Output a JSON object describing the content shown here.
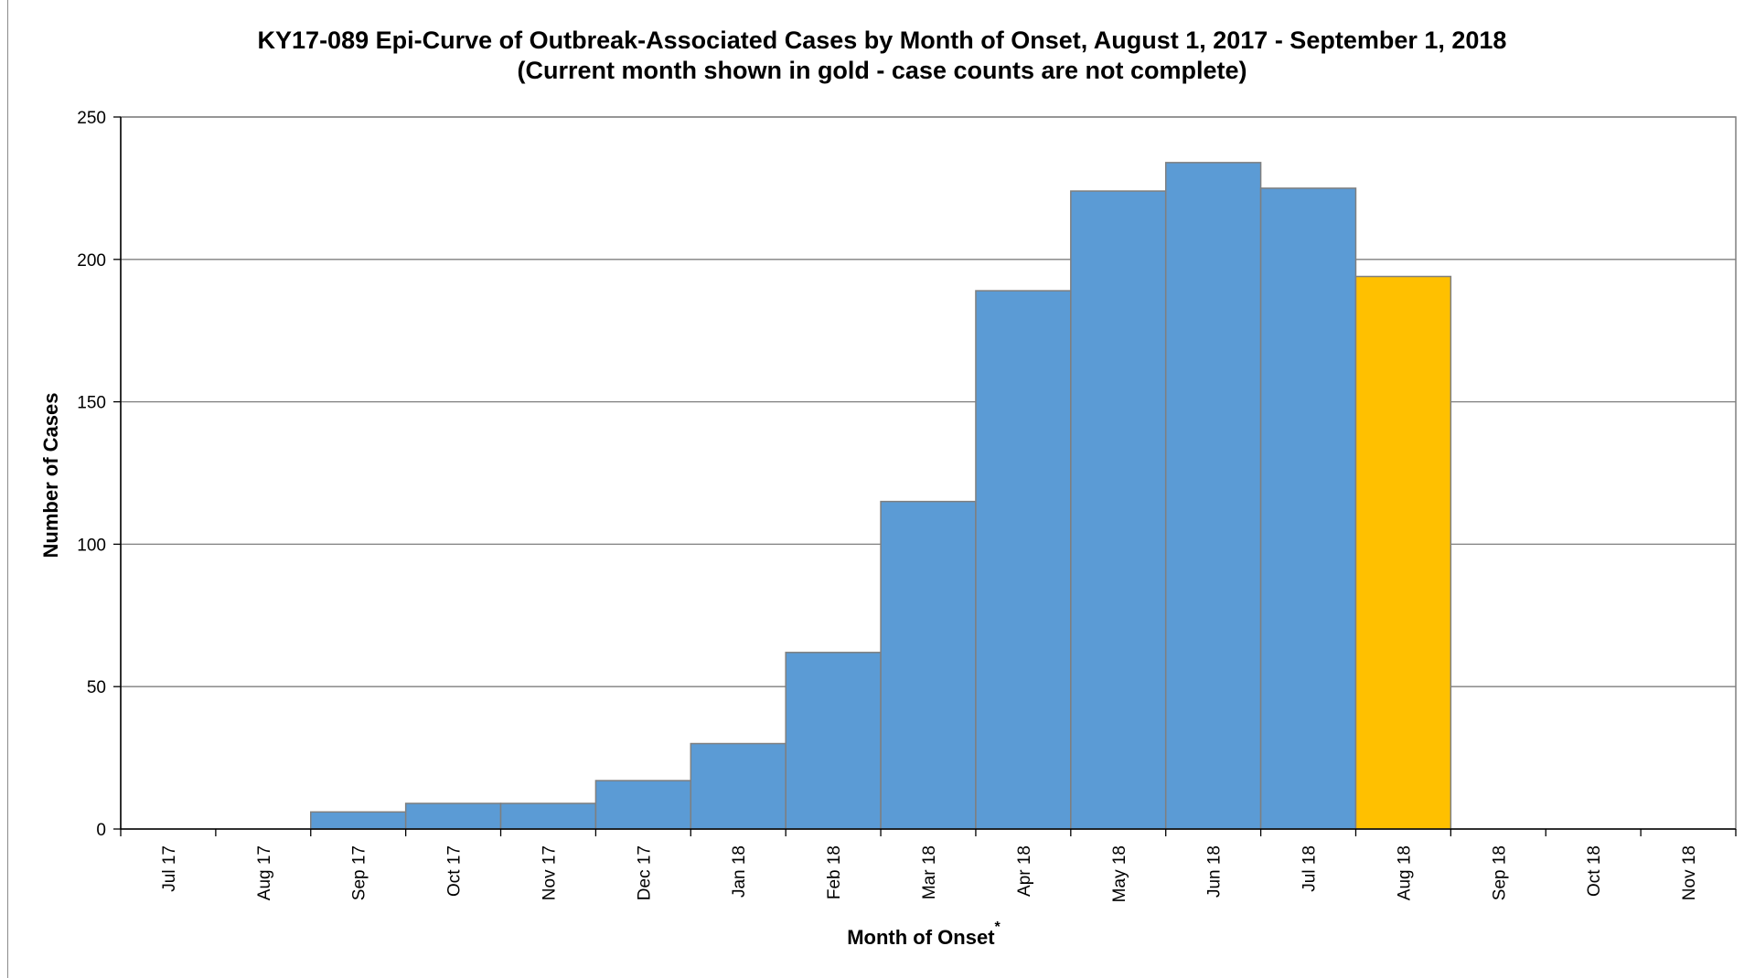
{
  "chart_data": {
    "type": "bar",
    "title_line1": "KY17-089 Epi-Curve of Outbreak-Associated Cases by Month of Onset, August 1, 2017 - September 1, 2018",
    "title_line2": "(Current month shown in gold - case counts are not complete)",
    "xlabel": "Month of Onset",
    "xlabel_marker": "*",
    "ylabel": "Number of Cases",
    "ylim": [
      0,
      250
    ],
    "yticks": [
      0,
      50,
      100,
      150,
      200,
      250
    ],
    "grid": true,
    "categories": [
      "Jul 17",
      "Aug 17",
      "Sep 17",
      "Oct 17",
      "Nov 17",
      "Dec 17",
      "Jan 18",
      "Feb 18",
      "Mar 18",
      "Apr 18",
      "May 18",
      "Jun 18",
      "Jul 18",
      "Aug 18",
      "Sep 18",
      "Oct 18",
      "Nov 18"
    ],
    "values": [
      0,
      0,
      6,
      9,
      9,
      17,
      30,
      62,
      115,
      189,
      224,
      234,
      225,
      194,
      0,
      0,
      0
    ],
    "highlight_category": "Aug 18",
    "colors": {
      "bar": "#5b9bd5",
      "highlight": "#ffc000",
      "bar_edge": "#7f7f7f",
      "grid": "#7f7f7f"
    }
  }
}
